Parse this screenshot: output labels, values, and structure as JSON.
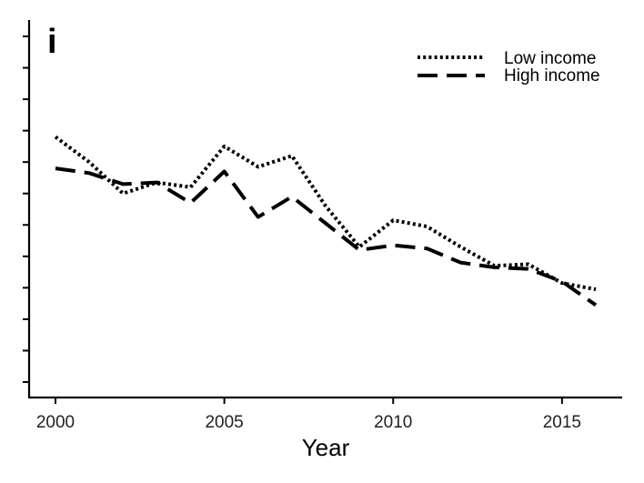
{
  "chart_data": {
    "type": "line",
    "panel_label": "i",
    "title": "",
    "xlabel": "Year",
    "ylabel": "",
    "xlim": [
      2000,
      2016
    ],
    "ylim": [
      0,
      11
    ],
    "x_ticks": [
      2000,
      2005,
      2010,
      2015
    ],
    "y_tick_count": 11,
    "y_tick_labels_shown": false,
    "grid": false,
    "legend_position": "top-right",
    "x": [
      2000,
      2001,
      2002,
      2003,
      2004,
      2005,
      2006,
      2007,
      2008,
      2009,
      2010,
      2011,
      2012,
      2013,
      2014,
      2015,
      2016
    ],
    "series": [
      {
        "name": "Low income",
        "line_style": "dotted",
        "color": "#000000",
        "values": [
          7.8,
          7.0,
          6.0,
          6.35,
          6.2,
          7.5,
          6.85,
          7.2,
          5.6,
          4.3,
          5.15,
          4.95,
          4.3,
          3.7,
          3.75,
          3.15,
          2.95
        ]
      },
      {
        "name": "High income",
        "line_style": "dashed",
        "color": "#000000",
        "values": [
          6.8,
          6.65,
          6.3,
          6.35,
          5.7,
          6.7,
          5.25,
          5.9,
          5.05,
          4.2,
          4.35,
          4.25,
          3.8,
          3.65,
          3.6,
          3.2,
          2.45
        ]
      }
    ]
  }
}
